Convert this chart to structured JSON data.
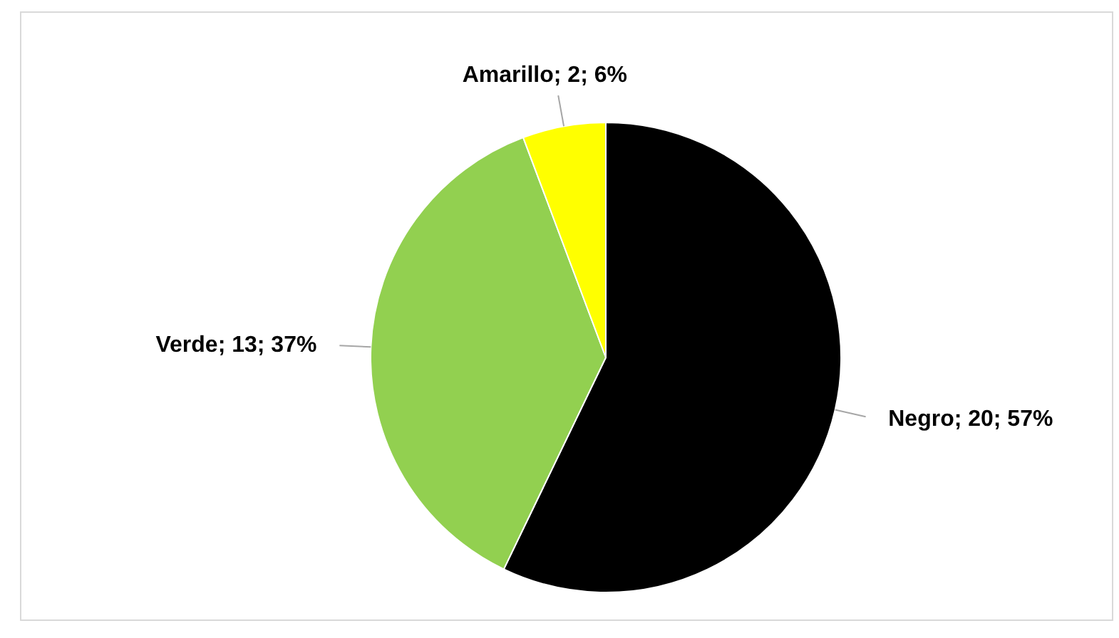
{
  "chart_data": {
    "type": "pie",
    "categories": [
      "Negro",
      "Verde",
      "Amarillo"
    ],
    "values": [
      20,
      13,
      2
    ],
    "colors": [
      "#000000",
      "#92d050",
      "#ffff00"
    ],
    "value_labels": [
      "20; 57%",
      "13; 37%",
      "2; 6%"
    ],
    "legend": false
  }
}
